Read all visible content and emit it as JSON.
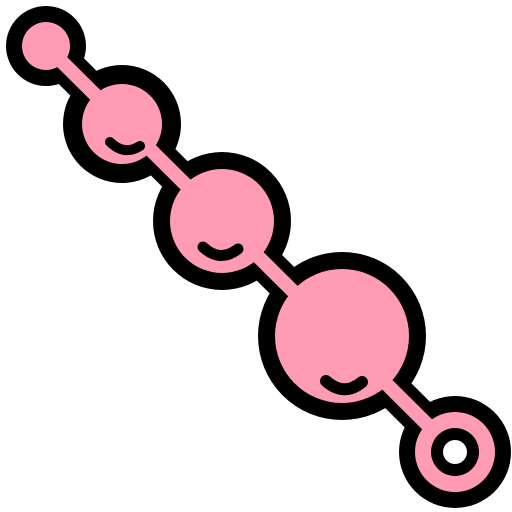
{
  "illustration": {
    "icon": "anal-beads-icon",
    "colors": {
      "fill": "#FF9BB3",
      "outline": "#000000",
      "background": "#FFFFFF"
    },
    "parts": [
      "bead-1",
      "bead-2",
      "bead-3",
      "bead-4",
      "pull-ring"
    ]
  }
}
